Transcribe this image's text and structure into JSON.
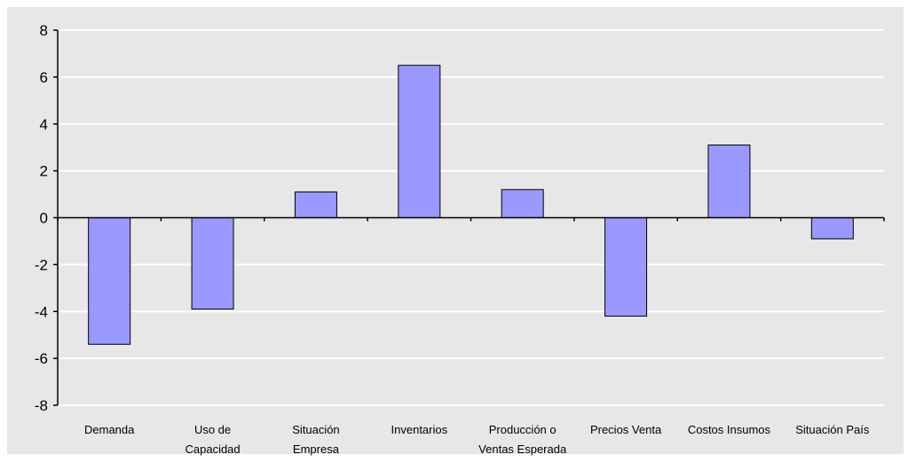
{
  "chart_data": {
    "type": "bar",
    "categories": [
      [
        "Demanda"
      ],
      [
        "Uso de",
        "Capacidad"
      ],
      [
        "Situación",
        "Empresa"
      ],
      [
        "Inventarios"
      ],
      [
        "Producción o",
        "Ventas Esperada"
      ],
      [
        "Precios Venta"
      ],
      [
        "Costos Insumos"
      ],
      [
        "Situación País"
      ]
    ],
    "values": [
      -5.4,
      -3.9,
      1.1,
      6.5,
      1.2,
      -4.2,
      3.1,
      -0.9
    ],
    "ylim": [
      -8,
      8
    ],
    "yticks": [
      8,
      6,
      4,
      2,
      0,
      -2,
      -4,
      -6,
      -8
    ],
    "grid": true,
    "legend": "none",
    "colors": {
      "plot_background": "#E7E7E7",
      "page_background": "#FFFFFF",
      "bar_fill": "#9999FF",
      "bar_stroke": "#000000",
      "gridline": "#FFFFFF",
      "axis": "#000000"
    }
  }
}
